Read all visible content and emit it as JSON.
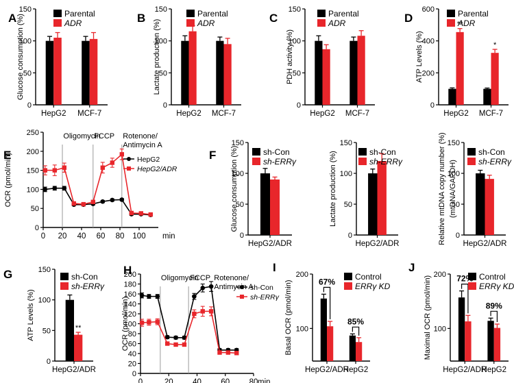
{
  "colors": {
    "black": "#000000",
    "red": "#e8262b",
    "grey": "#9a9a9a"
  },
  "chart_data": [
    {
      "id": "A",
      "type": "bar",
      "panel_letter": "A",
      "ylabel": "Glucose consumption (%)",
      "ylim": [
        0,
        150
      ],
      "yticks": [
        0,
        50,
        100,
        150
      ],
      "categories": [
        "HepG2",
        "MCF-7"
      ],
      "series": [
        {
          "name": "Parental",
          "color": "#000000",
          "values": [
            100,
            100
          ],
          "errors": [
            7,
            7
          ]
        },
        {
          "name": "ADR",
          "italic": true,
          "color": "#e8262b",
          "values": [
            105,
            103
          ],
          "errors": [
            8,
            10
          ]
        }
      ],
      "annotations": []
    },
    {
      "id": "B",
      "type": "bar",
      "panel_letter": "B",
      "ylabel": "Lactate production (%)",
      "ylim": [
        0,
        150
      ],
      "yticks": [
        0,
        50,
        100,
        150
      ],
      "categories": [
        "HepG2",
        "MCF-7"
      ],
      "series": [
        {
          "name": "Parental",
          "color": "#000000",
          "values": [
            100,
            100
          ],
          "errors": [
            8,
            6
          ]
        },
        {
          "name": "ADR",
          "italic": true,
          "color": "#e8262b",
          "values": [
            115,
            95
          ],
          "errors": [
            9,
            9
          ]
        }
      ],
      "annotations": []
    },
    {
      "id": "C",
      "type": "bar",
      "panel_letter": "C",
      "ylabel": "PDH activity (%)",
      "ylim": [
        0,
        150
      ],
      "yticks": [
        0,
        50,
        100,
        150
      ],
      "categories": [
        "HepG2",
        "MCF-7"
      ],
      "series": [
        {
          "name": "Parental",
          "color": "#000000",
          "values": [
            100,
            100
          ],
          "errors": [
            8,
            6
          ]
        },
        {
          "name": "ADR",
          "italic": true,
          "color": "#e8262b",
          "values": [
            87,
            108
          ],
          "errors": [
            7,
            8
          ]
        }
      ],
      "annotations": []
    },
    {
      "id": "D",
      "type": "bar",
      "panel_letter": "D",
      "ylabel": "ATP Levels (%)",
      "ylim": [
        0,
        600
      ],
      "yticks": [
        0,
        200,
        400,
        600
      ],
      "categories": [
        "HepG2",
        "MCF-7"
      ],
      "series": [
        {
          "name": "Parental",
          "color": "#000000",
          "values": [
            100,
            100
          ],
          "errors": [
            6,
            5
          ]
        },
        {
          "name": "ADR",
          "italic": true,
          "color": "#e8262b",
          "values": [
            455,
            325
          ],
          "errors": [
            22,
            22
          ]
        }
      ],
      "annotations": [
        {
          "text": "**",
          "category": 0,
          "series": 1
        },
        {
          "text": "*",
          "category": 1,
          "series": 1
        }
      ]
    },
    {
      "id": "E",
      "type": "line",
      "panel_letter": "E",
      "ylabel": "OCR (pmol/min)",
      "xlabel": "min",
      "xlim": [
        0,
        120
      ],
      "ylim": [
        0,
        250
      ],
      "xticks": [
        0,
        20,
        40,
        60,
        80,
        100
      ],
      "yticks": [
        0,
        50,
        100,
        150,
        200,
        250
      ],
      "vlines": [
        20,
        52,
        82
      ],
      "phase_labels": [
        {
          "text": "Oligomycin",
          "x": 21
        },
        {
          "text": "FCCP",
          "x": 53
        },
        {
          "text": "Rotenone/",
          "x": 83
        },
        {
          "text": "Antimycin A",
          "x": 83
        }
      ],
      "series": [
        {
          "name": "HepG2",
          "color": "#000000",
          "marker": "circle",
          "x": [
            2,
            12,
            22,
            32,
            42,
            52,
            62,
            72,
            82,
            92,
            102,
            112
          ],
          "y": [
            100,
            103,
            103,
            60,
            60,
            62,
            68,
            72,
            73,
            35,
            35,
            33
          ],
          "err": [
            6,
            5,
            5,
            3,
            3,
            3,
            3,
            3,
            3,
            3,
            3,
            3
          ]
        },
        {
          "name": "HepG2/ADR",
          "italic": true,
          "color": "#e8262b",
          "marker": "square",
          "x": [
            2,
            12,
            22,
            32,
            42,
            52,
            62,
            72,
            82,
            92,
            102,
            112
          ],
          "y": [
            150,
            150,
            157,
            63,
            61,
            67,
            157,
            170,
            192,
            38,
            37,
            34
          ],
          "err": [
            12,
            14,
            12,
            4,
            4,
            4,
            14,
            12,
            14,
            3,
            3,
            3
          ]
        }
      ]
    },
    {
      "id": "F1",
      "type": "bar",
      "panel_letter": "F",
      "ylabel": "Glucose consumption (%)",
      "ylim": [
        0,
        150
      ],
      "yticks": [
        0,
        50,
        100,
        150
      ],
      "categories": [
        "HepG2/ADR"
      ],
      "series": [
        {
          "name": "sh-Con",
          "color": "#000000",
          "values": [
            100
          ],
          "errors": [
            8
          ]
        },
        {
          "name": "sh-ERRγ",
          "italic": true,
          "color": "#e8262b",
          "values": [
            90
          ],
          "errors": [
            4
          ]
        }
      ],
      "annotations": []
    },
    {
      "id": "F2",
      "type": "bar",
      "ylabel": "Lactate production (%)",
      "ylim": [
        0,
        150
      ],
      "yticks": [
        0,
        50,
        100,
        150
      ],
      "categories": [
        "HepG2/ADR"
      ],
      "series": [
        {
          "name": "sh-Con",
          "color": "#000000",
          "values": [
            100
          ],
          "errors": [
            7
          ]
        },
        {
          "name": "sh-ERRγ",
          "italic": true,
          "color": "#e8262b",
          "values": [
            120
          ],
          "errors": [
            12
          ]
        }
      ],
      "annotations": []
    },
    {
      "id": "F3",
      "type": "bar",
      "ylabel": "Relative mtDNA copy number (%)",
      "ylabel2": "(mtDNA/GAPDH)",
      "ylim": [
        0,
        150
      ],
      "yticks": [
        0,
        50,
        100,
        150
      ],
      "categories": [
        "HepG2/ADR"
      ],
      "series": [
        {
          "name": "sh-Con",
          "color": "#000000",
          "values": [
            100
          ],
          "errors": [
            5
          ]
        },
        {
          "name": "sh-ERRγ",
          "italic": true,
          "color": "#e8262b",
          "values": [
            91
          ],
          "errors": [
            6
          ]
        }
      ],
      "annotations": []
    },
    {
      "id": "G",
      "type": "bar",
      "panel_letter": "G",
      "ylabel": "ATP Levels (%)",
      "ylim": [
        0,
        150
      ],
      "yticks": [
        0,
        50,
        100,
        150
      ],
      "categories": [
        "HepG2/ADR"
      ],
      "series": [
        {
          "name": "sh-Con",
          "color": "#000000",
          "values": [
            100
          ],
          "errors": [
            8
          ]
        },
        {
          "name": "sh-ERRγ",
          "italic": true,
          "color": "#e8262b",
          "values": [
            43
          ],
          "errors": [
            4
          ]
        }
      ],
      "annotations": [
        {
          "text": "**",
          "category": 0,
          "series": 1
        }
      ]
    },
    {
      "id": "H",
      "type": "line",
      "panel_letter": "H",
      "ylabel": "OCR (pmol/min)",
      "xlabel": "min",
      "xlim": [
        0,
        80
      ],
      "ylim": [
        0,
        200
      ],
      "xticks": [
        0,
        20,
        40,
        60,
        80
      ],
      "yticks": [
        0,
        20,
        40,
        60,
        80,
        100,
        120,
        140,
        160,
        180,
        200
      ],
      "vlines": [
        14,
        34
      ],
      "phase_labels": [
        {
          "text": "Oligomycin",
          "x": 14.5
        },
        {
          "text": "FCCP",
          "x": 35
        },
        {
          "text": "Rotenone/",
          "x": 52
        },
        {
          "text": "Antimycin A",
          "x": 52
        }
      ],
      "series": [
        {
          "name": "sh-Con",
          "color": "#000000",
          "marker": "circle",
          "x": [
            1,
            6,
            12,
            19,
            25,
            31,
            38,
            44,
            50,
            56,
            62,
            68
          ],
          "y": [
            157,
            155,
            155,
            73,
            72,
            72,
            155,
            172,
            175,
            47,
            47,
            47
          ],
          "err": [
            5,
            4,
            4,
            3,
            3,
            3,
            6,
            8,
            10,
            3,
            3,
            3
          ]
        },
        {
          "name": "sh-ERRγ",
          "italic": true,
          "color": "#e8262b",
          "marker": "square",
          "x": [
            1,
            6,
            12,
            19,
            25,
            31,
            38,
            44,
            50,
            56,
            62,
            68
          ],
          "y": [
            102,
            103,
            104,
            60,
            58,
            58,
            120,
            125,
            125,
            42,
            42,
            41
          ],
          "err": [
            7,
            6,
            6,
            3,
            3,
            3,
            8,
            10,
            9,
            3,
            3,
            3
          ]
        }
      ]
    },
    {
      "id": "I",
      "type": "bar",
      "panel_letter": "I",
      "ylabel": "Basal OCR (pmol/min)",
      "ylim": [
        40,
        200
      ],
      "yticks": [
        100,
        200
      ],
      "categories": [
        "HepG2/ADR",
        "HepG2"
      ],
      "series": [
        {
          "name": "Control",
          "color": "#000000",
          "values": [
            155,
            87
          ],
          "errors": [
            8,
            3
          ]
        },
        {
          "name": "ERRγ KD",
          "italic": true,
          "color": "#e8262b",
          "values": [
            104,
            75
          ],
          "errors": [
            9,
            8
          ]
        }
      ],
      "brackets": [
        {
          "category": 0,
          "text": "67%"
        },
        {
          "category": 1,
          "text": "85%"
        }
      ],
      "annotations": []
    },
    {
      "id": "J",
      "type": "bar",
      "panel_letter": "J",
      "ylabel": "Maximal OCR (pmol/min)",
      "ylim": [
        40,
        200
      ],
      "yticks": [
        100,
        200
      ],
      "categories": [
        "HepG2/ADR",
        "HepG2"
      ],
      "series": [
        {
          "name": "Control",
          "color": "#000000",
          "values": [
            157,
            114
          ],
          "errors": [
            12,
            5
          ]
        },
        {
          "name": "ERRγ KD",
          "italic": true,
          "color": "#e8262b",
          "values": [
            113,
            101
          ],
          "errors": [
            11,
            7
          ]
        }
      ],
      "brackets": [
        {
          "category": 0,
          "text": "72%"
        },
        {
          "category": 1,
          "text": "89%"
        }
      ],
      "annotations": []
    }
  ]
}
